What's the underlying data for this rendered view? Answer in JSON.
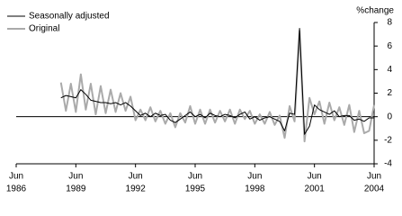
{
  "chart_data": {
    "type": "line",
    "y_axis_label": "%change",
    "x": [
      "1988-09",
      "1988-12",
      "1989-03",
      "1989-06",
      "1989-09",
      "1989-12",
      "1990-03",
      "1990-06",
      "1990-09",
      "1990-12",
      "1991-03",
      "1991-06",
      "1991-09",
      "1991-12",
      "1992-03",
      "1992-06",
      "1992-09",
      "1992-12",
      "1993-03",
      "1993-06",
      "1993-09",
      "1993-12",
      "1994-03",
      "1994-06",
      "1994-09",
      "1994-12",
      "1995-03",
      "1995-06",
      "1995-09",
      "1995-12",
      "1996-03",
      "1996-06",
      "1996-09",
      "1996-12",
      "1997-03",
      "1997-06",
      "1997-09",
      "1997-12",
      "1998-03",
      "1998-06",
      "1998-09",
      "1998-12",
      "1999-03",
      "1999-06",
      "1999-09",
      "1999-12",
      "2000-03",
      "2000-06",
      "2000-09",
      "2000-12",
      "2001-03",
      "2001-06",
      "2001-09",
      "2001-12",
      "2002-03",
      "2002-06",
      "2002-09",
      "2002-12",
      "2003-03",
      "2003-06",
      "2003-09",
      "2003-12",
      "2004-03",
      "2004-06"
    ],
    "series": [
      {
        "name": "Seasonally adjusted",
        "color": "#000000",
        "width": 1,
        "values": [
          1.6,
          1.8,
          1.7,
          1.6,
          2.3,
          1.9,
          1.4,
          1.3,
          1.2,
          1.2,
          1.1,
          1.2,
          1.0,
          1.2,
          0.9,
          0.5,
          0.1,
          0.3,
          0.0,
          0.3,
          0.1,
          0.2,
          -0.3,
          -0.5,
          -0.2,
          0.1,
          0.4,
          0.0,
          0.2,
          -0.1,
          0.3,
          0.1,
          0.0,
          0.2,
          0.1,
          -0.1,
          0.2,
          0.4,
          -0.2,
          0.0,
          -0.3,
          -0.1,
          0.0,
          -0.2,
          -0.4,
          -1.2,
          0.3,
          0.2,
          7.5,
          -1.5,
          -0.8,
          1.0,
          0.6,
          0.4,
          0.2,
          0.5,
          0.0,
          0.1,
          0.1,
          -0.3,
          -0.2,
          -0.4,
          -0.1,
          -0.1
        ]
      },
      {
        "name": "Original",
        "color": "#aaaaaa",
        "width": 2,
        "values": [
          2.9,
          0.5,
          2.8,
          0.4,
          3.6,
          0.6,
          2.8,
          0.2,
          2.6,
          0.3,
          2.3,
          0.4,
          2.0,
          0.5,
          1.7,
          -0.3,
          0.6,
          -0.3,
          0.8,
          -0.4,
          0.5,
          -0.6,
          0.3,
          -0.9,
          0.3,
          -0.5,
          0.9,
          -0.6,
          0.6,
          -0.6,
          0.6,
          -0.5,
          0.5,
          -0.4,
          0.6,
          -0.6,
          0.6,
          -0.2,
          0.5,
          -0.6,
          0.2,
          -0.6,
          0.4,
          -0.7,
          0.1,
          -1.8,
          0.9,
          -0.4,
          7.3,
          -2.1,
          1.6,
          0.2,
          1.3,
          -0.6,
          1.2,
          -0.3,
          0.8,
          -0.7,
          1.0,
          -1.3,
          0.5,
          -1.4,
          -1.2,
          1.0
        ]
      }
    ],
    "xlim": [
      "1986-06",
      "2004-06"
    ],
    "xticks": [
      {
        "value": "1986-06",
        "label": [
          "Jun",
          "1986"
        ]
      },
      {
        "value": "1989-06",
        "label": [
          "Jun",
          "1989"
        ]
      },
      {
        "value": "1992-06",
        "label": [
          "Jun",
          "1992"
        ]
      },
      {
        "value": "1995-06",
        "label": [
          "Jun",
          "1995"
        ]
      },
      {
        "value": "1998-06",
        "label": [
          "Jun",
          "1998"
        ]
      },
      {
        "value": "2001-06",
        "label": [
          "Jun",
          "2001"
        ]
      },
      {
        "value": "2004-06",
        "label": [
          "Jun",
          "2004"
        ]
      }
    ],
    "ylim": [
      -4,
      8
    ],
    "yticks": [
      -4,
      -2,
      0,
      2,
      4,
      6,
      8
    ],
    "legend": "top-left"
  }
}
